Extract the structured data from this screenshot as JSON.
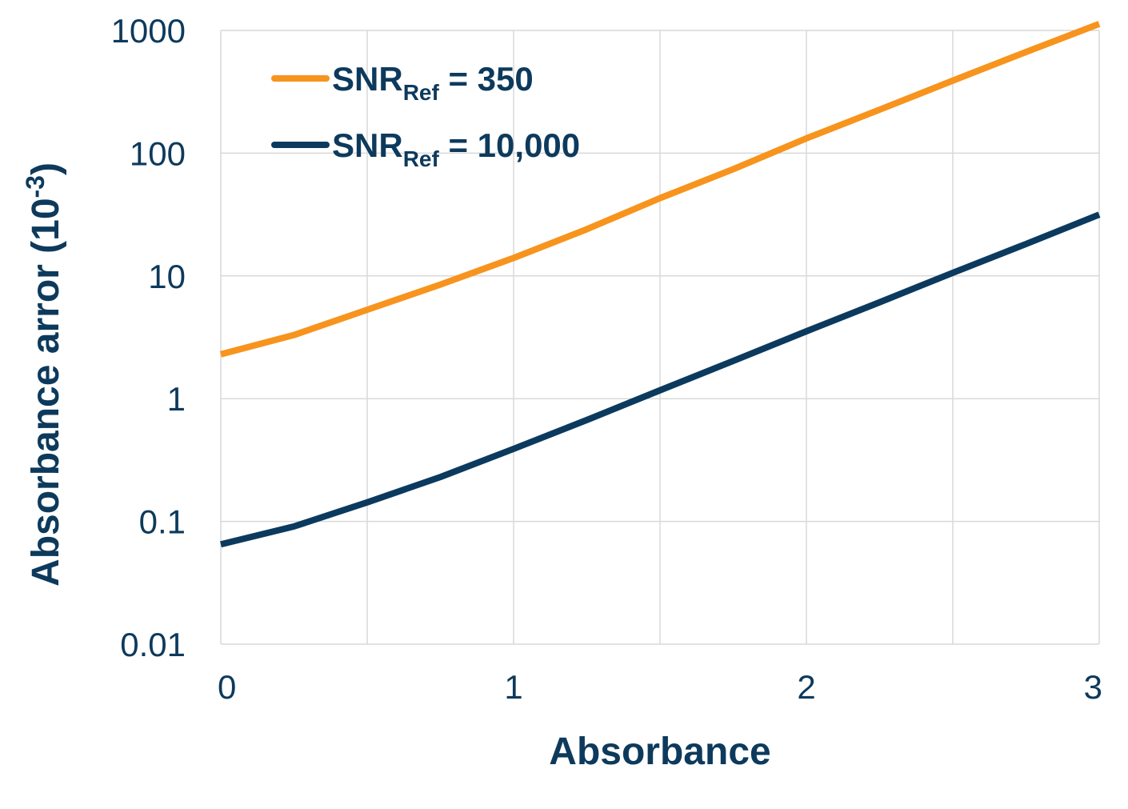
{
  "chart_data": {
    "type": "line",
    "xlabel": "Absorbance",
    "ylabel": {
      "base": "Absorbance arror (10",
      "sup": "-3",
      "end": ")"
    },
    "x": [
      0,
      0.25,
      0.5,
      0.75,
      1,
      1.25,
      1.5,
      1.75,
      2,
      2.25,
      2.5,
      2.75,
      3
    ],
    "series": [
      {
        "name": {
          "base": "SNR",
          "sub": "Ref",
          "end": " = 350"
        },
        "color": "#f7941d",
        "values": [
          2.3,
          3.3,
          5.3,
          8.5,
          14,
          24,
          43,
          74,
          132,
          226,
          390,
          667,
          1130
        ]
      },
      {
        "name": {
          "base": "SNR",
          "sub": "Ref",
          "end": " = 10,000"
        },
        "color": "#0b3a5e",
        "values": [
          0.065,
          0.091,
          0.143,
          0.23,
          0.39,
          0.67,
          1.17,
          2.03,
          3.54,
          6.1,
          10.6,
          18.2,
          31.6
        ]
      }
    ],
    "xlim": [
      0,
      3
    ],
    "xticks": [
      0,
      1,
      2,
      3
    ],
    "x_minor_gridlines": [
      0.5,
      1.5,
      2.5
    ],
    "ylim": [
      0.01,
      1000
    ],
    "yticks": [
      0.01,
      0.1,
      1,
      10,
      100,
      1000
    ],
    "yscale": "log",
    "grid": true,
    "legend": "upper left"
  }
}
